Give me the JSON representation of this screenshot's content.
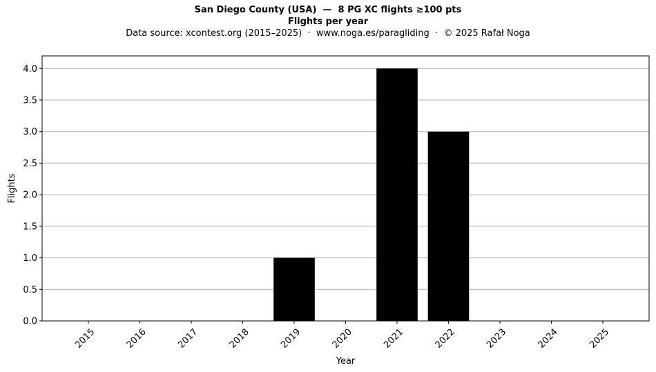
{
  "chart_data": {
    "type": "bar",
    "title": "San Diego County (USA)  —  8 PG XC flights ≥100 pts",
    "title2": "Flights per year",
    "subtitle": "Data source: xcontest.org (2015–2025)  ·  www.noga.es/paragliding  ·  © 2025 Rafał Noga",
    "xlabel": "Year",
    "ylabel": "Flights",
    "categories": [
      "2015",
      "2016",
      "2017",
      "2018",
      "2019",
      "2020",
      "2021",
      "2022",
      "2023",
      "2024",
      "2025"
    ],
    "values": [
      0,
      0,
      0,
      0,
      1,
      0,
      4,
      3,
      0,
      0,
      0
    ],
    "ylim": [
      0,
      4.2
    ],
    "yticks": [
      "0.0",
      "0.5",
      "1.0",
      "1.5",
      "2.0",
      "2.5",
      "3.0",
      "3.5",
      "4.0"
    ],
    "grid": "y",
    "bar_color": "#000000",
    "grid_color": "#b0b0b0"
  }
}
